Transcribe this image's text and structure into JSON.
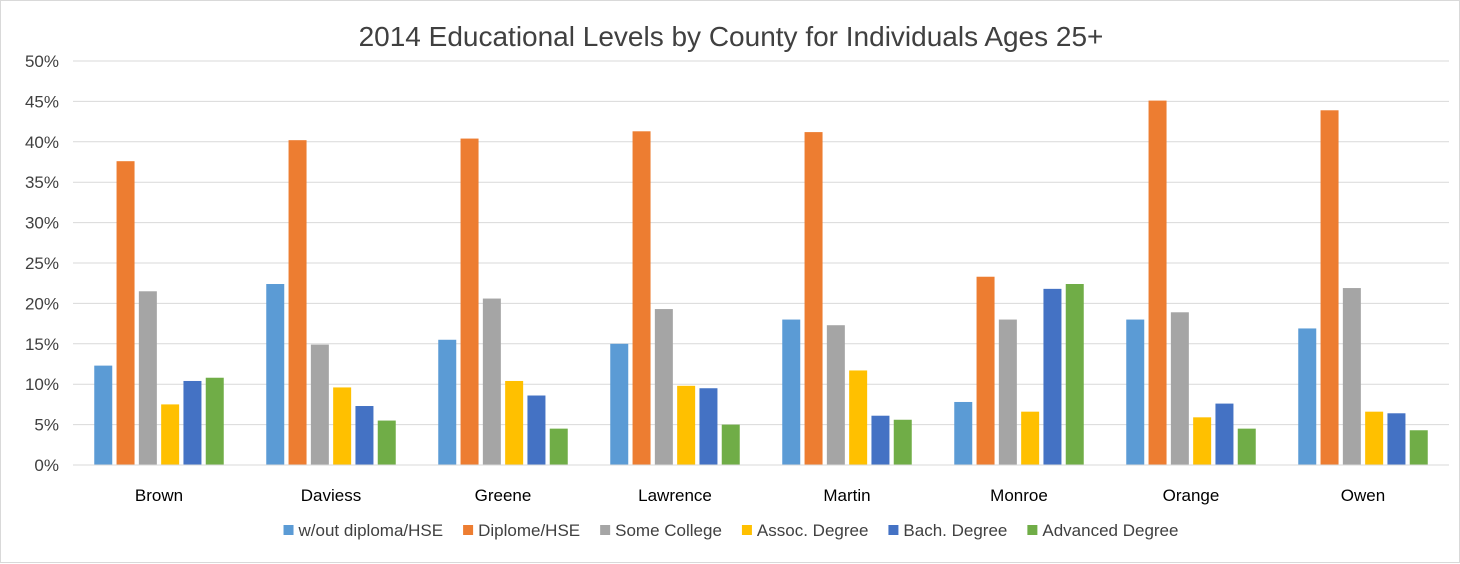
{
  "chart_data": {
    "type": "bar",
    "title": "2014 Educational Levels by County for Individuals Ages 25+",
    "xlabel": "",
    "ylabel": "",
    "ylim": [
      0,
      50
    ],
    "y_ticks": [
      "0%",
      "5%",
      "10%",
      "15%",
      "20%",
      "25%",
      "30%",
      "35%",
      "40%",
      "45%",
      "50%"
    ],
    "grid": true,
    "legend_position": "bottom",
    "categories": [
      "Brown",
      "Daviess",
      "Greene",
      "Lawrence",
      "Martin",
      "Monroe",
      "Orange",
      "Owen"
    ],
    "series": [
      {
        "name": "w/out diploma/HSE",
        "color": "#5b9bd5",
        "values": [
          12.3,
          22.4,
          15.5,
          15.0,
          18.0,
          7.8,
          18.0,
          16.9
        ]
      },
      {
        "name": "Diplome/HSE",
        "color": "#ed7d31",
        "values": [
          37.6,
          40.2,
          40.4,
          41.3,
          41.2,
          23.3,
          45.1,
          43.9
        ]
      },
      {
        "name": "Some College",
        "color": "#a5a5a5",
        "values": [
          21.5,
          14.9,
          20.6,
          19.3,
          17.3,
          18.0,
          18.9,
          21.9
        ]
      },
      {
        "name": "Assoc. Degree",
        "color": "#ffc000",
        "values": [
          7.5,
          9.6,
          10.4,
          9.8,
          11.7,
          6.6,
          5.9,
          6.6
        ]
      },
      {
        "name": "Bach. Degree",
        "color": "#4472c4",
        "values": [
          10.4,
          7.3,
          8.6,
          9.5,
          6.1,
          21.8,
          7.6,
          6.4
        ]
      },
      {
        "name": "Advanced Degree",
        "color": "#70ad47",
        "values": [
          10.8,
          5.5,
          4.5,
          5.0,
          5.6,
          22.4,
          4.5,
          4.3
        ]
      }
    ]
  }
}
